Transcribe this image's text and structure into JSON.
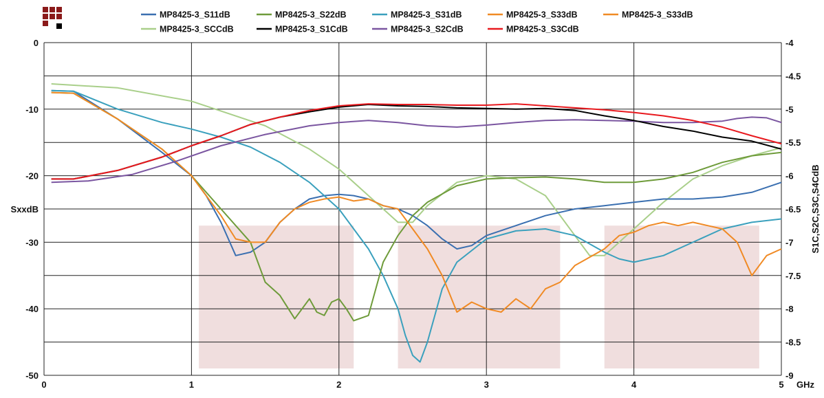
{
  "chart_data": {
    "type": "line",
    "x_unit": "GHz",
    "y_left_label": "SxxdB",
    "y_right_label": "S1C,S2C,S3C,S4CdB",
    "x_range": [
      0,
      5
    ],
    "y_left_range": [
      -50,
      0
    ],
    "y_right_range": [
      -9,
      -4
    ],
    "x_ticks": [
      "0",
      "1",
      "2",
      "3",
      "4",
      "5"
    ],
    "y_left_ticks": [
      "0",
      "-10",
      "-20",
      "SxxdB",
      "-30",
      "-40",
      "-50"
    ],
    "y_left_tick_values": [
      0,
      -10,
      -20,
      -25,
      -30,
      -40,
      -50
    ],
    "y_right_ticks": [
      "-4",
      "-4.5",
      "-5",
      "-5.5",
      "-6",
      "-6.5",
      "-7",
      "-7.5",
      "-8",
      "-8.5",
      "-9"
    ],
    "grid": true,
    "legend_position": "top",
    "shaded_bands_ghz": [
      [
        1.05,
        2.1
      ],
      [
        2.4,
        3.5
      ],
      [
        3.8,
        4.85
      ]
    ],
    "shaded_color": "#f0dede",
    "logo_colors": {
      "red": "#8b1a1a",
      "black": "#000000"
    },
    "series": [
      {
        "name": "MP8425-3_S11dB",
        "color": "#3a6fb0",
        "axis": "left",
        "x": [
          0.05,
          0.2,
          0.5,
          0.8,
          1.0,
          1.1,
          1.2,
          1.3,
          1.4,
          1.5,
          1.6,
          1.7,
          1.8,
          1.9,
          2.0,
          2.1,
          2.2,
          2.3,
          2.4,
          2.5,
          2.6,
          2.7,
          2.8,
          2.9,
          3.0,
          3.2,
          3.4,
          3.6,
          3.8,
          4.0,
          4.2,
          4.4,
          4.6,
          4.8,
          5.0
        ],
        "y": [
          -7.2,
          -7.3,
          -11.5,
          -16.5,
          -20,
          -23,
          -27,
          -32,
          -31.5,
          -30,
          -27,
          -25,
          -23.5,
          -23,
          -22.8,
          -23,
          -23.5,
          -24.5,
          -25,
          -26,
          -27.5,
          -29.5,
          -31,
          -30.5,
          -29,
          -27.5,
          -26,
          -25,
          -24.5,
          -24,
          -23.5,
          -23.5,
          -23.2,
          -22.5,
          -21
        ]
      },
      {
        "name": "MP8425-3_S22dB",
        "color": "#6e9b3a",
        "axis": "left",
        "x": [
          0.05,
          0.2,
          0.5,
          0.8,
          1.0,
          1.2,
          1.4,
          1.5,
          1.6,
          1.7,
          1.75,
          1.8,
          1.85,
          1.9,
          1.95,
          2.0,
          2.05,
          2.1,
          2.2,
          2.3,
          2.4,
          2.5,
          2.6,
          2.8,
          3.0,
          3.2,
          3.4,
          3.6,
          3.8,
          4.0,
          4.2,
          4.4,
          4.6,
          4.8,
          5.0
        ],
        "y": [
          -7.5,
          -7.6,
          -11.5,
          -16,
          -20,
          -25,
          -30,
          -36,
          -38,
          -41.5,
          -40,
          -38.5,
          -40.5,
          -41,
          -39,
          -38.5,
          -40,
          -41.8,
          -41,
          -33,
          -29,
          -26,
          -24,
          -21.5,
          -20.5,
          -20.3,
          -20.2,
          -20.5,
          -21,
          -21,
          -20.5,
          -19.5,
          -18,
          -17,
          -16.5
        ]
      },
      {
        "name": "MP8425-3_S31dB",
        "color": "#3aa0bd",
        "axis": "left",
        "x": [
          0.05,
          0.2,
          0.5,
          0.8,
          1.0,
          1.2,
          1.4,
          1.6,
          1.8,
          2.0,
          2.2,
          2.3,
          2.4,
          2.45,
          2.5,
          2.55,
          2.6,
          2.65,
          2.7,
          2.8,
          3.0,
          3.2,
          3.4,
          3.6,
          3.8,
          3.9,
          4.0,
          4.2,
          4.4,
          4.6,
          4.8,
          5.0
        ],
        "y": [
          -7.2,
          -7.3,
          -10,
          -12,
          -13,
          -14.2,
          -15.7,
          -18,
          -21,
          -25,
          -31,
          -35,
          -40,
          -44,
          -47,
          -48,
          -45,
          -41,
          -37,
          -33,
          -29.5,
          -28.3,
          -28,
          -29,
          -31.5,
          -32.5,
          -33,
          -32,
          -30,
          -28,
          -27,
          -26.5
        ]
      },
      {
        "name": "MP8425-3_S33dB",
        "color": "#f08a24",
        "axis": "left",
        "x": [
          0.05,
          0.2,
          0.5,
          0.8,
          1.0,
          1.1,
          1.2,
          1.3,
          1.4,
          1.5,
          1.6,
          1.7,
          1.8,
          1.9,
          2.0,
          2.1,
          2.2,
          2.3,
          2.4,
          2.5,
          2.6,
          2.7,
          2.8,
          2.9,
          3.0,
          3.1,
          3.2,
          3.3,
          3.4,
          3.5,
          3.6,
          3.8,
          3.9,
          4.0,
          4.1,
          4.2,
          4.3,
          4.4,
          4.5,
          4.6,
          4.7,
          4.8,
          4.9,
          5.0
        ],
        "y": [
          -7.5,
          -7.6,
          -11.5,
          -16,
          -20,
          -23,
          -26,
          -29.5,
          -30,
          -30,
          -27,
          -25,
          -24,
          -23.5,
          -23.2,
          -23.8,
          -23.5,
          -24.5,
          -25,
          -28,
          -31,
          -35,
          -40.5,
          -39,
          -40,
          -40.5,
          -38.5,
          -40,
          -37,
          -36,
          -33.5,
          -31,
          -29,
          -28.5,
          -27.5,
          -27,
          -27.5,
          -27,
          -27.5,
          -28,
          -30,
          -35,
          -32,
          -31
        ]
      },
      {
        "name": "MP8425-3_SCCdB",
        "color": "#a9cf8a",
        "axis": "left",
        "x": [
          0.05,
          0.5,
          1.0,
          1.5,
          1.8,
          2.0,
          2.2,
          2.4,
          2.5,
          2.6,
          2.8,
          3.0,
          3.2,
          3.4,
          3.6,
          3.7,
          3.8,
          4.0,
          4.2,
          4.4,
          4.6,
          4.8,
          5.0
        ],
        "y": [
          -6.2,
          -6.8,
          -8.8,
          -12.5,
          -16,
          -19,
          -23,
          -27,
          -27,
          -24.5,
          -21,
          -20,
          -20.5,
          -23,
          -29,
          -32,
          -32,
          -28,
          -24,
          -20.5,
          -18.5,
          -17,
          -15.8
        ]
      },
      {
        "name": "MP8425-3_S1CdB",
        "color": "#000000",
        "axis": "right",
        "x": [
          0.05,
          0.2,
          0.5,
          0.8,
          1.0,
          1.2,
          1.4,
          1.6,
          1.8,
          2.0,
          2.2,
          2.4,
          2.6,
          2.8,
          3.0,
          3.2,
          3.4,
          3.6,
          3.8,
          4.0,
          4.2,
          4.4,
          4.6,
          4.8,
          5.0
        ],
        "y": [
          -6.05,
          -6.05,
          -5.92,
          -5.72,
          -5.55,
          -5.4,
          -5.23,
          -5.12,
          -5.04,
          -4.97,
          -4.93,
          -4.95,
          -4.96,
          -4.98,
          -4.99,
          -5.0,
          -4.99,
          -5.02,
          -5.1,
          -5.17,
          -5.26,
          -5.33,
          -5.42,
          -5.48,
          -5.6
        ]
      },
      {
        "name": "MP8425-3_S2CdB",
        "color": "#7a55a0",
        "axis": "right",
        "x": [
          0.05,
          0.3,
          0.6,
          0.9,
          1.2,
          1.5,
          1.8,
          2.0,
          2.2,
          2.4,
          2.6,
          2.8,
          3.0,
          3.2,
          3.4,
          3.6,
          3.8,
          4.0,
          4.2,
          4.4,
          4.6,
          4.7,
          4.8,
          4.9,
          5.0
        ],
        "y": [
          -6.1,
          -6.08,
          -5.98,
          -5.78,
          -5.55,
          -5.38,
          -5.25,
          -5.2,
          -5.17,
          -5.2,
          -5.25,
          -5.27,
          -5.24,
          -5.2,
          -5.17,
          -5.16,
          -5.17,
          -5.18,
          -5.2,
          -5.2,
          -5.18,
          -5.14,
          -5.12,
          -5.13,
          -5.2
        ]
      },
      {
        "name": "MP8425-3_S3CdB",
        "color": "#e8191e",
        "axis": "right",
        "x": [
          0.05,
          0.2,
          0.5,
          0.8,
          1.0,
          1.2,
          1.4,
          1.6,
          1.8,
          2.0,
          2.2,
          2.4,
          2.6,
          2.8,
          3.0,
          3.2,
          3.4,
          3.6,
          3.8,
          4.0,
          4.2,
          4.4,
          4.6,
          4.8,
          5.0
        ],
        "y": [
          -6.05,
          -6.05,
          -5.92,
          -5.72,
          -5.55,
          -5.4,
          -5.23,
          -5.12,
          -5.02,
          -4.95,
          -4.92,
          -4.93,
          -4.93,
          -4.94,
          -4.94,
          -4.92,
          -4.95,
          -4.98,
          -5.01,
          -5.05,
          -5.1,
          -5.17,
          -5.27,
          -5.4,
          -5.52
        ]
      }
    ],
    "legend_rows": [
      [
        "MP8425-3_S11dB",
        "MP8425-3_S22dB",
        "MP8425-3_S31dB",
        "MP8425-3_S33dB",
        "MP8425-3_S33dB"
      ],
      [
        "MP8425-3_SCCdB",
        "MP8425-3_S1CdB",
        "MP8425-3_S2CdB",
        "MP8425-3_S3CdB"
      ]
    ],
    "legend_colors": [
      [
        "#3a6fb0",
        "#6e9b3a",
        "#3aa0bd",
        "#f08a24",
        "#f08a24"
      ],
      [
        "#a9cf8a",
        "#000000",
        "#7a55a0",
        "#e8191e"
      ]
    ]
  }
}
